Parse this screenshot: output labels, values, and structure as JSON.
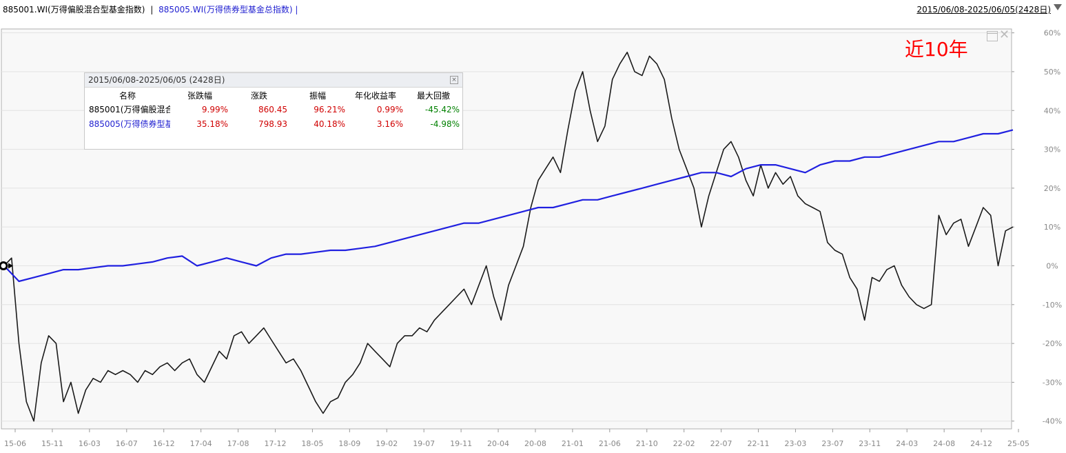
{
  "header": {
    "series1_label": "885001.WI(万得偏股混合型基金指数)",
    "separator": "|",
    "series2_label": "885005.WI(万得债券型基金总指数)",
    "trailing_separator": "|",
    "date_range": "2015/06/08-2025/06/05(2428日)"
  },
  "overlay": {
    "period_label": "近10年"
  },
  "stats_table": {
    "title": "2015/06/08-2025/06/05 (2428日)",
    "close_glyph": "×",
    "columns": [
      "名称",
      "张跌幅",
      "涨跌",
      "振幅",
      "年化收益率",
      "最大回撤"
    ],
    "rows": [
      {
        "name": "885001(万得偏股混合",
        "pct": "9.99%",
        "chg": "860.45",
        "amp": "96.21%",
        "annual": "0.99%",
        "drawdown": "-45.42%"
      },
      {
        "name": "885005(万得债券型基",
        "pct": "35.18%",
        "chg": "798.93",
        "amp": "40.18%",
        "annual": "3.16%",
        "drawdown": "-4.98%"
      }
    ]
  },
  "colors": {
    "series1": "#1a1a1a",
    "series2": "#2020e0",
    "positive": "#d00000",
    "negative": "#008000",
    "period_label": "#ff0000"
  },
  "chart_data": {
    "type": "line",
    "ylim": [
      -42,
      61
    ],
    "yticks": [
      "60%",
      "50%",
      "40%",
      "30%",
      "20%",
      "10%",
      "0%",
      "-10%",
      "-20%",
      "-30%",
      "-40%"
    ],
    "ytick_values": [
      60,
      50,
      40,
      30,
      20,
      10,
      0,
      -10,
      -20,
      -30,
      -40
    ],
    "xticks": [
      "15-06",
      "15-11",
      "16-03",
      "16-07",
      "16-12",
      "17-04",
      "17-08",
      "17-12",
      "18-05",
      "18-09",
      "19-02",
      "19-07",
      "19-11",
      "20-04",
      "20-08",
      "21-01",
      "21-06",
      "21-10",
      "22-02",
      "22-07",
      "22-11",
      "23-03",
      "23-07",
      "23-11",
      "24-03",
      "24-08",
      "24-12",
      "25-05"
    ],
    "series": [
      {
        "name": "885001.WI(万得偏股混合型基金指数)",
        "color": "#1a1a1a",
        "values": [
          0,
          2,
          -20,
          -35,
          -40,
          -25,
          -18,
          -20,
          -35,
          -30,
          -38,
          -32,
          -29,
          -30,
          -27,
          -28,
          -27,
          -28,
          -30,
          -27,
          -28,
          -26,
          -25,
          -27,
          -25,
          -24,
          -28,
          -30,
          -26,
          -22,
          -24,
          -18,
          -17,
          -20,
          -18,
          -16,
          -19,
          -22,
          -25,
          -24,
          -27,
          -31,
          -35,
          -38,
          -35,
          -34,
          -30,
          -28,
          -25,
          -20,
          -22,
          -24,
          -26,
          -20,
          -18,
          -18,
          -16,
          -17,
          -14,
          -12,
          -10,
          -8,
          -6,
          -10,
          -5,
          0,
          -8,
          -14,
          -5,
          0,
          5,
          15,
          22,
          25,
          28,
          24,
          35,
          45,
          50,
          40,
          32,
          36,
          48,
          52,
          55,
          50,
          49,
          54,
          52,
          48,
          38,
          30,
          25,
          20,
          10,
          18,
          24,
          30,
          32,
          28,
          22,
          18,
          26,
          20,
          24,
          21,
          23,
          18,
          16,
          15,
          14,
          6,
          4,
          3,
          -3,
          -6,
          -14,
          -3,
          -4,
          -1,
          0,
          -5,
          -8,
          -10,
          -11,
          -10,
          13,
          8,
          11,
          12,
          5,
          10,
          15,
          13,
          0,
          9,
          10
        ]
      },
      {
        "name": "885005.WI(万得债券型基金总指数)",
        "color": "#2020e0",
        "values": [
          0,
          -4,
          -3,
          -2,
          -1,
          -1,
          -0.5,
          0,
          0,
          0.5,
          1,
          2,
          2.5,
          0,
          1,
          2,
          1,
          0,
          2,
          3,
          3,
          3.5,
          4,
          4,
          4.5,
          5,
          6,
          7,
          8,
          9,
          10,
          11,
          11,
          12,
          13,
          14,
          15,
          15,
          16,
          17,
          17,
          18,
          19,
          20,
          21,
          22,
          23,
          24,
          24,
          23,
          25,
          26,
          26,
          25,
          24,
          26,
          27,
          27,
          28,
          28,
          29,
          30,
          31,
          32,
          32,
          33,
          34,
          34,
          35
        ]
      }
    ]
  }
}
